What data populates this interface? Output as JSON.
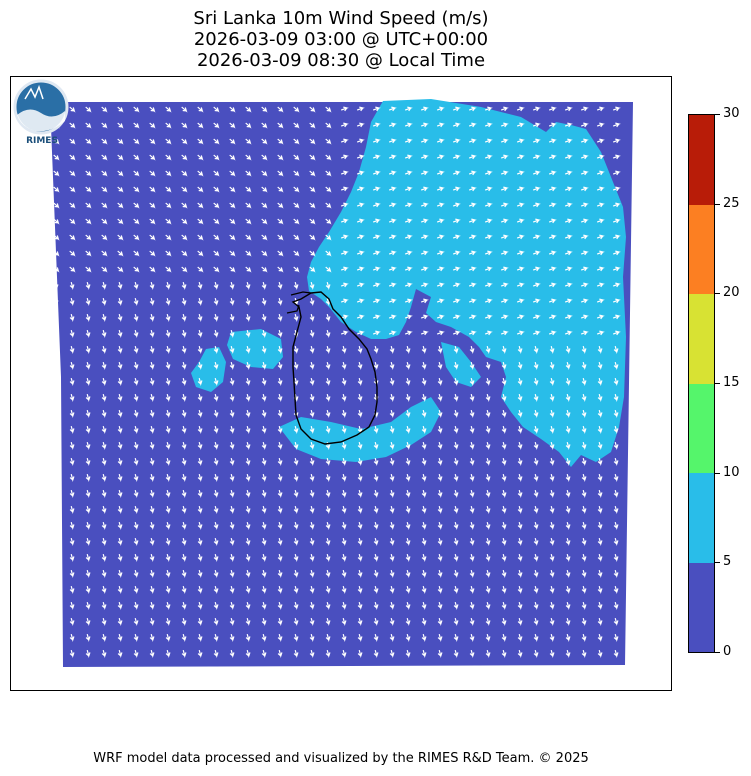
{
  "title": {
    "line1": "Sri Lanka 10m Wind Speed (m/s)",
    "line2": "2026-03-09 03:00 @ UTC+00:00",
    "line3": "2026-03-09 08:30 @ Local Time"
  },
  "colorbar": {
    "ticks": [
      "0",
      "5",
      "10",
      "15",
      "20",
      "25",
      "30"
    ],
    "colors": [
      "#4a4fbf",
      "#29bde9",
      "#55f56b",
      "#d8e233",
      "#fc7f22",
      "#b81c08"
    ]
  },
  "map": {
    "background_color": "#4a4fbf",
    "high_wind_color": "#29bde9",
    "arrow_color": "#ffffff",
    "coastline_color": "#000000"
  },
  "logo": {
    "text": "RIMES"
  },
  "footer": {
    "credit": "WRF model data processed and visualized by the RIMES R&D Team. © 2025"
  }
}
